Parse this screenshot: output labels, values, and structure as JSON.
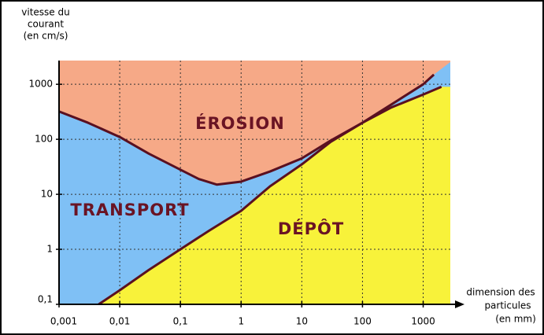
{
  "chart_data": {
    "type": "area",
    "title_lines": [
      "vitesse du",
      "courant",
      "(en cm/s)"
    ],
    "x_label_lines": [
      "dimension des",
      "particules",
      "(en mm)"
    ],
    "log_x": true,
    "log_y": true,
    "grid": true,
    "xlim": [
      0.001,
      2800
    ],
    "ylim": [
      0.1,
      2700
    ],
    "xticks": [
      {
        "value": 0.001,
        "label": "0,001"
      },
      {
        "value": 0.01,
        "label": "0,01"
      },
      {
        "value": 0.1,
        "label": "0,1"
      },
      1,
      10,
      100,
      1000
    ],
    "yticks": [
      {
        "value": 0.1,
        "label": "0,1"
      },
      1,
      10,
      100,
      1000
    ],
    "series": [
      {
        "color": "#5a1020",
        "fill": "#f6a987",
        "x": [
          0.001,
          0.003,
          0.01,
          0.03,
          0.1,
          0.2,
          0.4,
          1,
          3,
          10,
          30,
          100,
          300,
          1000,
          1500
        ],
        "values": [
          320,
          200,
          110,
          55,
          28,
          19,
          15,
          17,
          26,
          45,
          95,
          200,
          430,
          1000,
          1500
        ]
      },
      {
        "color": "#5a1020",
        "fill": "#7fc0f5",
        "x": [
          0.0045,
          0.01,
          0.03,
          0.1,
          0.3,
          1,
          3,
          10,
          30,
          100,
          300,
          1000,
          2000
        ],
        "values": [
          0.1,
          0.18,
          0.42,
          1,
          2.2,
          5,
          14,
          35,
          90,
          200,
          380,
          650,
          900
        ]
      }
    ],
    "background": "#f8f23a",
    "annotations": [
      "ÉROSION",
      "TRANSPORT",
      "DÉPÔT"
    ]
  }
}
